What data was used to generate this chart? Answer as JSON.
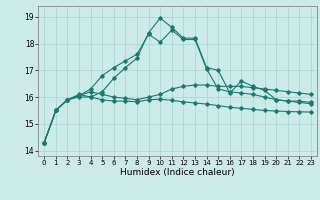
{
  "title": "",
  "xlabel": "Humidex (Indice chaleur)",
  "ylabel": "",
  "background_color": "#cceae7",
  "grid_color": "#aad4d0",
  "line_color": "#1a7a6e",
  "xlim": [
    -0.5,
    23.5
  ],
  "ylim": [
    13.8,
    19.4
  ],
  "yticks": [
    14,
    15,
    16,
    17,
    18,
    19
  ],
  "xticks": [
    0,
    1,
    2,
    3,
    4,
    5,
    6,
    7,
    8,
    9,
    10,
    11,
    12,
    13,
    14,
    15,
    16,
    17,
    18,
    19,
    20,
    21,
    22,
    23
  ],
  "series": [
    [
      14.3,
      15.5,
      15.9,
      16.0,
      16.0,
      15.9,
      15.85,
      15.85,
      15.82,
      15.9,
      15.92,
      15.88,
      15.82,
      15.78,
      15.74,
      15.68,
      15.62,
      15.58,
      15.54,
      15.5,
      15.48,
      15.46,
      15.45,
      15.44
    ],
    [
      14.3,
      15.5,
      15.9,
      16.05,
      16.3,
      16.8,
      17.1,
      17.35,
      17.6,
      18.35,
      18.05,
      18.5,
      18.15,
      18.15,
      17.05,
      16.3,
      16.2,
      16.15,
      16.1,
      16.0,
      15.9,
      15.85,
      15.85,
      15.8
    ],
    [
      14.3,
      15.5,
      15.9,
      16.05,
      16.2,
      16.1,
      16.0,
      15.95,
      15.9,
      16.0,
      16.1,
      16.3,
      16.4,
      16.45,
      16.45,
      16.4,
      16.4,
      16.4,
      16.35,
      16.3,
      16.25,
      16.2,
      16.15,
      16.1
    ],
    [
      14.3,
      15.5,
      15.9,
      16.1,
      16.0,
      16.2,
      16.7,
      17.1,
      17.45,
      18.4,
      18.95,
      18.6,
      18.2,
      18.2,
      17.1,
      17.0,
      16.15,
      16.6,
      16.4,
      16.25,
      15.9,
      15.85,
      15.8,
      15.75
    ]
  ],
  "figsize": [
    3.2,
    2.0
  ],
  "dpi": 100
}
